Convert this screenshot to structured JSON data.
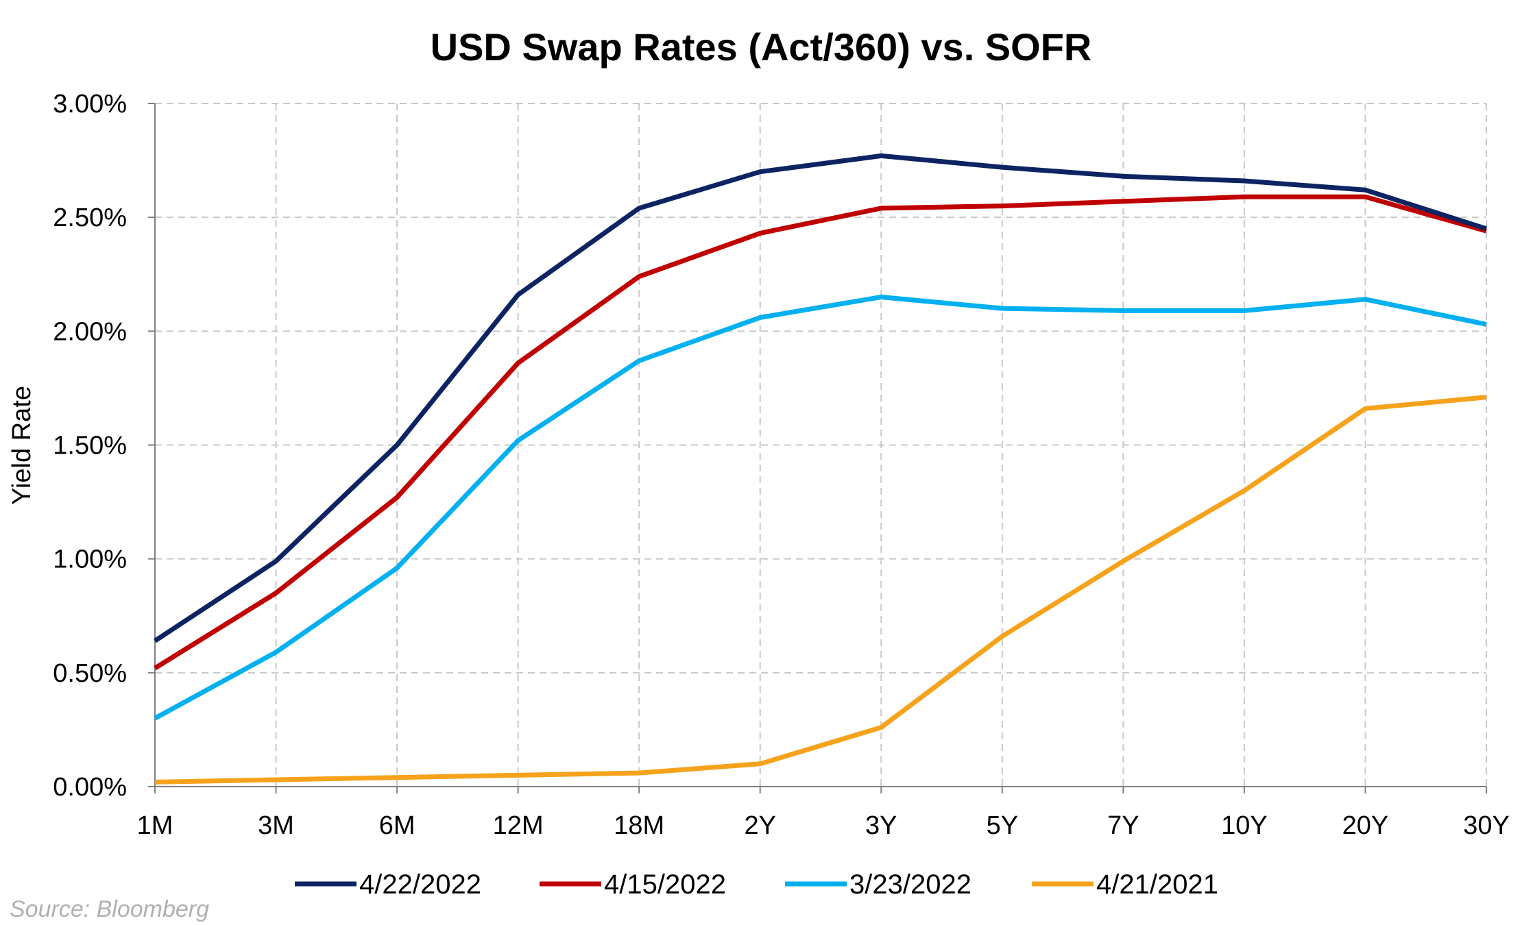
{
  "chart_data": {
    "type": "line",
    "title": "USD Swap Rates (Act/360) vs. SOFR",
    "xlabel": "",
    "ylabel": "Yield Rate",
    "categories": [
      "1M",
      "3M",
      "6M",
      "12M",
      "18M",
      "2Y",
      "3Y",
      "5Y",
      "7Y",
      "10Y",
      "20Y",
      "30Y"
    ],
    "ylim": [
      0,
      3
    ],
    "yticks": [
      0,
      0.5,
      1,
      1.5,
      2,
      2.5,
      3
    ],
    "ytick_labels": [
      "0.00%",
      "0.50%",
      "1.00%",
      "1.50%",
      "2.00%",
      "2.50%",
      "3.00%"
    ],
    "grid": true,
    "legend_position": "bottom",
    "series": [
      {
        "name": "4/22/2022",
        "color": "#0d2463",
        "values": [
          0.64,
          0.99,
          1.5,
          2.16,
          2.54,
          2.7,
          2.77,
          2.72,
          2.68,
          2.66,
          2.62,
          2.45
        ]
      },
      {
        "name": "4/15/2022",
        "color": "#c00000",
        "values": [
          0.52,
          0.85,
          1.27,
          1.86,
          2.24,
          2.43,
          2.54,
          2.55,
          2.57,
          2.59,
          2.59,
          2.44
        ]
      },
      {
        "name": "3/23/2022",
        "color": "#00b0f0",
        "values": [
          0.3,
          0.59,
          0.96,
          1.52,
          1.87,
          2.06,
          2.15,
          2.1,
          2.09,
          2.09,
          2.14,
          2.03
        ]
      },
      {
        "name": "4/21/2021",
        "color": "#f7a21b",
        "values": [
          0.02,
          0.03,
          0.04,
          0.05,
          0.06,
          0.1,
          0.26,
          0.66,
          0.99,
          1.3,
          1.66,
          1.71
        ]
      }
    ],
    "source_note": "Source: Bloomberg"
  }
}
